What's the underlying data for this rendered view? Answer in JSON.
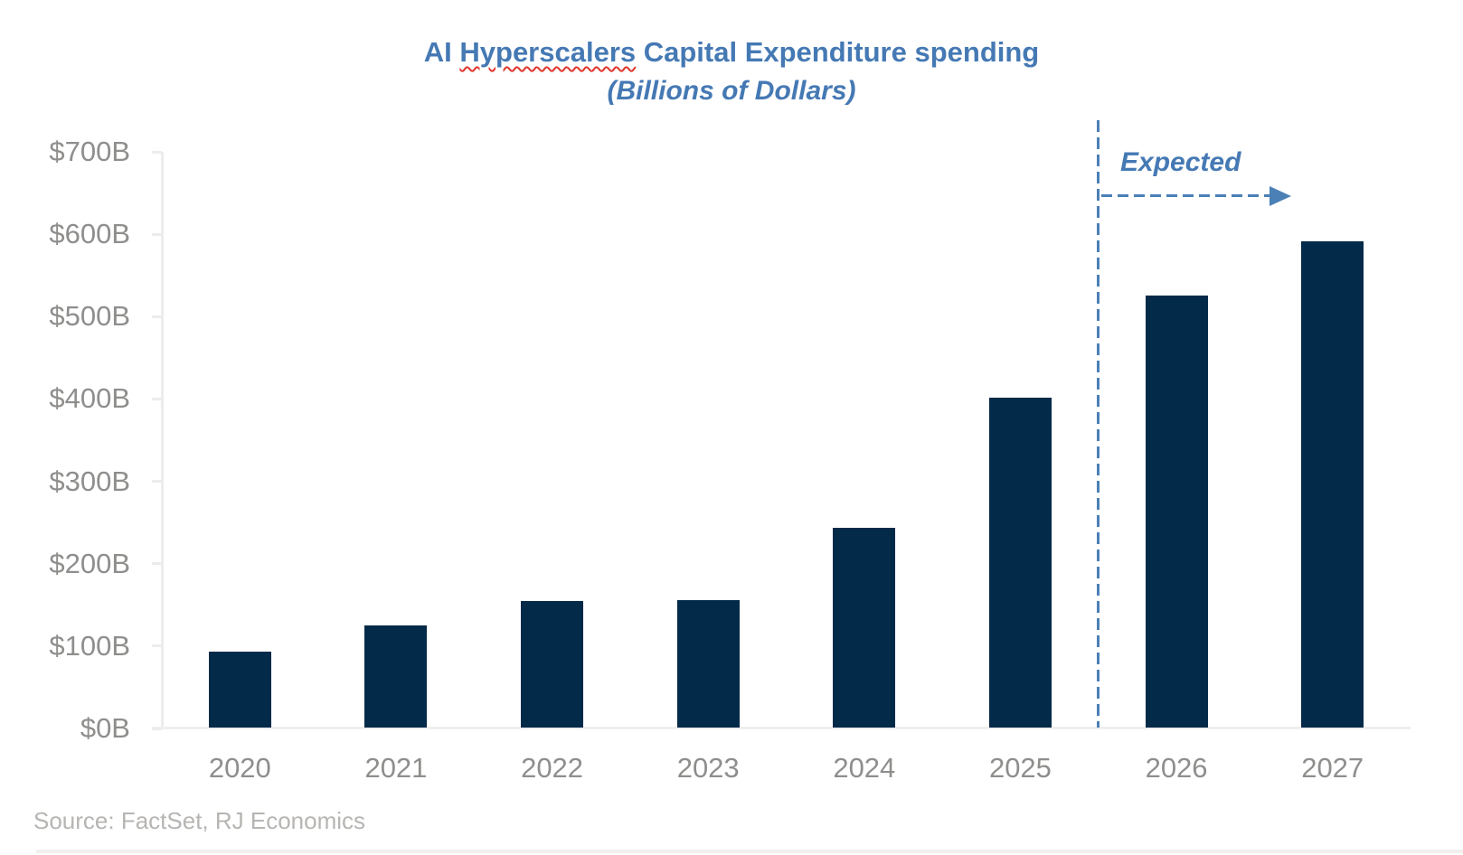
{
  "title": {
    "prefix": "AI ",
    "underlined_word": "Hyperscalers",
    "suffix": " Capital Expenditure spending",
    "full": "AI Hyperscalers Capital Expenditure spending"
  },
  "subtitle": "(Billions of Dollars)",
  "annotation": {
    "label": "Expected",
    "arrow": "dashed-right-arrow"
  },
  "source": "Source: FactSet, RJ Economics",
  "colors": {
    "bar": "#042a49",
    "title_blue": "#4579b4",
    "annotation_blue": "#4b80b6",
    "squiggle_red": "#e0352c",
    "axis_gray": "#ececec",
    "tick_label_gray": "#8f8e8c",
    "source_gray": "#b7b5b2"
  },
  "chart_data": {
    "type": "bar",
    "title": "AI Hyperscalers Capital Expenditure spending",
    "subtitle": "(Billions of Dollars)",
    "categories": [
      "2020",
      "2021",
      "2022",
      "2023",
      "2024",
      "2025",
      "2026",
      "2027"
    ],
    "values": [
      92,
      124,
      154,
      155,
      242,
      400,
      525,
      590
    ],
    "units": "Billions of Dollars",
    "xlabel": "",
    "ylabel": "",
    "ylim": [
      0,
      700
    ],
    "ytick_step": 100,
    "yticks": [
      "$0B",
      "$100B",
      "$200B",
      "$300B",
      "$400B",
      "$500B",
      "$600B",
      "$700B"
    ],
    "grid": false,
    "legend": "none",
    "expected_divider_between": [
      "2025",
      "2026"
    ],
    "expected_categories": [
      "2026",
      "2027"
    ],
    "annotation_label": "Expected"
  }
}
